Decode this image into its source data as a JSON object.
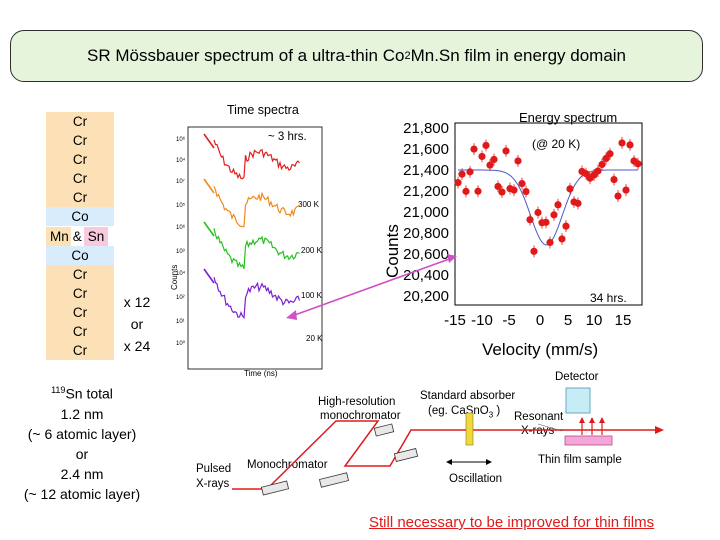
{
  "title": {
    "text_a": "SR Mössbauer spectrum of a ultra-thin Co",
    "sub": "2",
    "text_b": "Mn.Sn film in energy domain"
  },
  "stack": {
    "layers": [
      "Cr",
      "Cr",
      "Cr",
      "Cr",
      "Cr",
      "Co",
      "MnSn",
      "Co",
      "Cr",
      "Cr",
      "Cr",
      "Cr",
      "Cr"
    ],
    "mn_label": "Mn",
    "amp_label": "&",
    "sn_label": "Sn",
    "repeat_a": "x 12",
    "repeat_or": "or",
    "repeat_b": "x 24"
  },
  "sn_info": {
    "iso_sup": "119",
    "line1_rest": "Sn total",
    "line2": "1.2 nm",
    "line3": "(~ 6 atomic layer)",
    "line4": "or",
    "line5": "2.4 nm",
    "line6": "(~ 12 atomic layer)"
  },
  "time_spectra": {
    "title": "Time spectra",
    "duration": "~ 3 hrs.",
    "xlabel": "Time (ns)",
    "ylabel": "Counts",
    "temps": [
      "300 K",
      "200 K",
      "100 K",
      "20 K"
    ],
    "yticks": [
      "10⁶",
      "10⁴",
      "10⁷",
      "10⁵",
      "10⁶",
      "10³",
      "10⁴",
      "10²",
      "10¹",
      "10⁰"
    ],
    "colors": [
      "#e02020",
      "#f08a1a",
      "#28c020",
      "#7a1fd0"
    ]
  },
  "energy_spectrum": {
    "title": "Energy spectrum",
    "condition": "(@ 20 K)",
    "duration": "34 hrs.",
    "ylabel": "Counts",
    "xlabel": "Velocity (mm/s)",
    "yticks": [
      "21,800",
      "21,600",
      "21,400",
      "21,200",
      "21,000",
      "20,800",
      "20,600",
      "20,400",
      "20,200"
    ],
    "xticks": [
      "-15",
      "-10",
      "-5",
      "0",
      "5",
      "10",
      "15"
    ],
    "point_color": "#e01a1a",
    "fit_color": "#4a5ac8"
  },
  "setup": {
    "pulsed": "Pulsed",
    "xrays": "X-rays",
    "monochromator": "Monochromator",
    "hrm_line1": "High-resolution",
    "hrm_line2": "monochromator",
    "std_line1": "Standard absorber",
    "std_line2": "(eg. CaSnO",
    "std_sub": "3",
    "std_close": " )",
    "resonant": "Resonant",
    "resonant_xrays": "X-rays",
    "detector": "Detector",
    "oscillation": "Oscillation",
    "thin_film": "Thin film sample"
  },
  "footer": "Still necessary to be improved for thin films"
}
